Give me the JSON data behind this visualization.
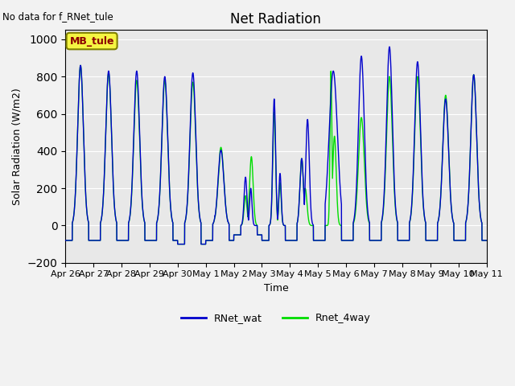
{
  "title": "Net Radiation",
  "ylabel": "Solar Radiation (W/m2)",
  "xlabel": "Time",
  "annotation_text": "No data for f_RNet_tule",
  "legend_label": "MB_tule",
  "ylim": [
    -200,
    1050
  ],
  "line1_label": "RNet_wat",
  "line2_label": "Rnet_4way",
  "line1_color": "#0000cc",
  "line2_color": "#00dd00",
  "plot_bg_color": "#e8e8e8",
  "fig_bg_color": "#f2f2f2",
  "xtick_labels": [
    "Apr 26",
    "Apr 27",
    "Apr 28",
    "Apr 29",
    "Apr 30",
    "May 1",
    "May 2",
    "May 3",
    "May 4",
    "May 5",
    "May 6",
    "May 7",
    "May 8",
    "May 9",
    "May 10",
    "May 11"
  ],
  "ytick_labels": [
    -200,
    0,
    200,
    400,
    600,
    800,
    1000
  ],
  "n_days": 15,
  "points_per_day": 288
}
